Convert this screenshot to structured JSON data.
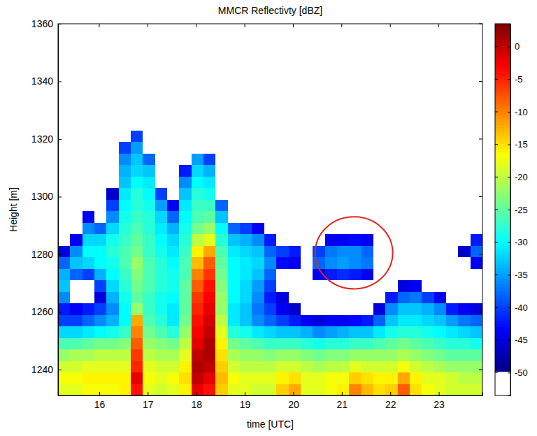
{
  "chart_data": {
    "type": "heatmap",
    "title": "MMCR Reflectivty [dBZ]",
    "x_label": "time [UTC]",
    "y_label": "Height [m]",
    "xlim": [
      15.15,
      23.9
    ],
    "xticks": [
      16,
      17,
      18,
      19,
      20,
      21,
      22,
      23
    ],
    "ylim": [
      1231,
      1360
    ],
    "yticks": [
      1240,
      1260,
      1280,
      1300,
      1320,
      1340,
      1360
    ],
    "x": [
      15.275,
      15.525,
      15.775,
      16.025,
      16.275,
      16.525,
      16.775,
      17.025,
      17.275,
      17.525,
      17.775,
      18.025,
      18.275,
      18.525,
      18.775,
      19.025,
      19.275,
      19.525,
      19.775,
      20.025,
      20.275,
      20.525,
      20.775,
      21.025,
      21.275,
      21.525,
      21.775,
      22.025,
      22.275,
      22.525,
      22.775,
      23.025,
      23.275,
      23.525,
      23.775
    ],
    "y": [
      1233,
      1237,
      1241,
      1245,
      1249,
      1253,
      1257,
      1261,
      1265,
      1269,
      1273,
      1277,
      1281,
      1285,
      1289,
      1293,
      1297,
      1301,
      1305,
      1309,
      1313,
      1317,
      1321,
      1325
    ],
    "values": [
      [
        -18,
        -17,
        -19,
        -22,
        -26,
        -32,
        -40,
        -42,
        -36,
        -33,
        -34,
        -38,
        -45,
        null,
        null,
        null,
        null,
        null,
        null,
        null,
        null,
        null,
        null,
        null
      ],
      [
        -18,
        -17,
        -19,
        -21,
        -26,
        -32,
        -40,
        -44,
        null,
        null,
        -38,
        -33,
        -36,
        -44,
        null,
        null,
        null,
        null,
        null,
        null,
        null,
        null,
        null,
        null
      ],
      [
        -17,
        -16,
        -18,
        -21,
        -25,
        -31,
        -38,
        -42,
        null,
        null,
        -40,
        -32,
        -30,
        -32,
        -36,
        -44,
        null,
        null,
        null,
        null,
        null,
        null,
        null,
        null
      ],
      [
        -17,
        -16,
        -18,
        -20,
        -24,
        -30,
        -36,
        -40,
        -45,
        -40,
        -34,
        -30,
        -30,
        -32,
        -38,
        null,
        null,
        null,
        null,
        null,
        null,
        null,
        null,
        null
      ],
      [
        -17,
        -16,
        -18,
        -20,
        -24,
        -29,
        -34,
        -36,
        -34,
        -32,
        -30,
        -29,
        -28,
        -29,
        -32,
        -36,
        -40,
        -46,
        null,
        null,
        null,
        null,
        null,
        null
      ],
      [
        -16,
        -16,
        -18,
        -20,
        -23,
        -27,
        -30,
        -30,
        -29,
        -28,
        -27,
        -26,
        -26,
        -27,
        -28,
        -29,
        -30,
        -31,
        -33,
        -34,
        -36,
        -40,
        null,
        null
      ],
      [
        -4,
        -2,
        -5,
        -6,
        -8,
        -10,
        -12,
        -22,
        -25,
        -24,
        -23,
        -22,
        -24,
        -25,
        -26,
        -27,
        -28,
        -28,
        -30,
        -32,
        -33,
        -35,
        -40,
        null
      ],
      [
        -18,
        -17,
        -18,
        -20,
        -22,
        -24,
        -26,
        -27,
        -27,
        -26,
        -26,
        -26,
        -27,
        -27,
        -28,
        -28,
        -29,
        -30,
        -31,
        -33,
        -38,
        null,
        null,
        null
      ],
      [
        -19,
        -18,
        -19,
        -21,
        -23,
        -26,
        -28,
        -29,
        -29,
        -28,
        -28,
        -28,
        -29,
        -30,
        -31,
        -32,
        -35,
        -40,
        null,
        null,
        null,
        null,
        null,
        null
      ],
      [
        -18,
        -17,
        -19,
        -21,
        -24,
        -28,
        -31,
        -31,
        -30,
        -29,
        -29,
        -30,
        -31,
        -32,
        -34,
        -38,
        -44,
        null,
        null,
        null,
        null,
        null,
        null,
        null
      ],
      [
        -16,
        -15,
        -16,
        -18,
        -20,
        -22,
        -24,
        -25,
        -25,
        -25,
        -26,
        -26,
        -27,
        -28,
        -29,
        -30,
        -31,
        -33,
        -36,
        -42,
        null,
        null,
        null,
        null
      ],
      [
        -2,
        0,
        1,
        0,
        -2,
        -3,
        -4,
        -5,
        -6,
        -8,
        -10,
        -13,
        -16,
        -20,
        -24,
        -26,
        -27,
        -28,
        -30,
        -32,
        -35,
        null,
        null,
        null
      ],
      [
        -4,
        -2,
        0,
        1,
        1,
        0,
        -1,
        -2,
        -3,
        -4,
        -6,
        -8,
        -12,
        -18,
        -22,
        -25,
        -27,
        -29,
        -31,
        -34,
        -40,
        null,
        null,
        null
      ],
      [
        -14,
        -13,
        -14,
        -15,
        -16,
        -18,
        -20,
        -22,
        -22,
        -23,
        -24,
        -25,
        -26,
        -28,
        -30,
        -33,
        -38,
        null,
        null,
        null,
        null,
        null,
        null,
        null
      ],
      [
        -18,
        -17,
        -19,
        -21,
        -24,
        -28,
        -31,
        -31,
        -30,
        -30,
        -30,
        -30,
        -31,
        -33,
        -38,
        null,
        null,
        null,
        null,
        null,
        null,
        null,
        null,
        null
      ],
      [
        -18,
        -18,
        -20,
        -22,
        -25,
        -29,
        -33,
        -33,
        -32,
        -32,
        -31,
        -31,
        -32,
        -34,
        -40,
        null,
        null,
        null,
        null,
        null,
        null,
        null,
        null,
        null
      ],
      [
        -19,
        -18,
        -20,
        -22,
        -26,
        -31,
        -36,
        -37,
        -36,
        -35,
        -33,
        -32,
        -33,
        -36,
        -44,
        null,
        null,
        null,
        null,
        null,
        null,
        null,
        null,
        null
      ],
      [
        -19,
        -18,
        -20,
        -23,
        -27,
        -32,
        -38,
        -40,
        -42,
        -40,
        -38,
        -36,
        -38,
        -42,
        null,
        null,
        null,
        null,
        null,
        null,
        null,
        null,
        null,
        null
      ],
      [
        -14,
        -16,
        -19,
        -22,
        -27,
        -33,
        -40,
        -44,
        -45,
        null,
        null,
        -43,
        -40,
        null,
        null,
        null,
        null,
        null,
        null,
        null,
        null,
        null,
        null,
        null
      ],
      [
        -12,
        -15,
        -19,
        -22,
        -27,
        -33,
        -42,
        -46,
        null,
        null,
        null,
        -44,
        -42,
        null,
        null,
        null,
        null,
        null,
        null,
        null,
        null,
        null,
        null,
        null
      ],
      [
        -18,
        -18,
        -20,
        -23,
        -28,
        -34,
        -44,
        null,
        null,
        null,
        null,
        null,
        null,
        null,
        null,
        null,
        null,
        null,
        null,
        null,
        null,
        null,
        null,
        null
      ],
      [
        -18,
        -18,
        -21,
        -24,
        -29,
        -36,
        -45,
        null,
        null,
        null,
        -44,
        -38,
        -40,
        null,
        null,
        null,
        null,
        null,
        null,
        null,
        null,
        null,
        null,
        null
      ],
      [
        -17,
        -17,
        -20,
        -23,
        -28,
        -35,
        -44,
        null,
        null,
        null,
        -42,
        -36,
        -37,
        -44,
        null,
        null,
        null,
        null,
        null,
        null,
        null,
        null,
        null,
        null
      ],
      [
        -16,
        -17,
        -20,
        -23,
        -28,
        -34,
        -44,
        null,
        null,
        null,
        -41,
        -35,
        -36,
        -44,
        null,
        null,
        null,
        null,
        null,
        null,
        null,
        null,
        null,
        null
      ],
      [
        -10,
        -14,
        -18,
        -22,
        -27,
        -33,
        -43,
        null,
        null,
        null,
        -42,
        -36,
        -36,
        -43,
        null,
        null,
        null,
        null,
        null,
        null,
        null,
        null,
        null,
        null
      ],
      [
        -13,
        -15,
        -19,
        -22,
        -27,
        -33,
        -42,
        null,
        null,
        null,
        -44,
        -37,
        -38,
        -44,
        null,
        null,
        null,
        null,
        null,
        null,
        null,
        null,
        null,
        null
      ],
      [
        -15,
        -16,
        -19,
        -22,
        -26,
        -31,
        -38,
        -45,
        null,
        null,
        null,
        null,
        null,
        null,
        null,
        null,
        null,
        null,
        null,
        null,
        null,
        null,
        null,
        null
      ],
      [
        -14,
        -16,
        -19,
        -22,
        -25,
        -29,
        -33,
        -36,
        -42,
        null,
        null,
        null,
        null,
        null,
        null,
        null,
        null,
        null,
        null,
        null,
        null,
        null,
        null,
        null
      ],
      [
        -8,
        -12,
        -17,
        -21,
        -24,
        -28,
        -31,
        -33,
        -38,
        -45,
        null,
        null,
        null,
        null,
        null,
        null,
        null,
        null,
        null,
        null,
        null,
        null,
        null,
        null
      ],
      [
        -15,
        -16,
        -19,
        -22,
        -25,
        -28,
        -31,
        -33,
        -37,
        -44,
        null,
        null,
        null,
        null,
        null,
        null,
        null,
        null,
        null,
        null,
        null,
        null,
        null,
        null
      ],
      [
        -17,
        -18,
        -20,
        -23,
        -26,
        -29,
        -32,
        -34,
        -40,
        null,
        null,
        null,
        null,
        null,
        null,
        null,
        null,
        null,
        null,
        null,
        null,
        null,
        null,
        null
      ],
      [
        -18,
        -18,
        -21,
        -24,
        -27,
        -30,
        -33,
        -36,
        -44,
        null,
        null,
        null,
        null,
        null,
        null,
        null,
        null,
        null,
        null,
        null,
        null,
        null,
        null,
        null
      ],
      [
        -19,
        -19,
        -22,
        -25,
        -28,
        -31,
        -35,
        -42,
        null,
        null,
        null,
        null,
        null,
        null,
        null,
        null,
        null,
        null,
        null,
        null,
        null,
        null,
        null,
        null
      ],
      [
        -19,
        -20,
        -22,
        -25,
        -28,
        -32,
        -37,
        -44,
        null,
        null,
        null,
        null,
        -46,
        null,
        null,
        null,
        null,
        null,
        null,
        null,
        null,
        null,
        null,
        null
      ],
      [
        -19,
        -20,
        -22,
        -25,
        -29,
        -33,
        -38,
        -45,
        null,
        null,
        null,
        -44,
        -38,
        -42,
        null,
        null,
        null,
        null,
        null,
        null,
        null,
        null,
        null,
        null
      ]
    ],
    "colorbar": {
      "lim": [
        -53.5,
        3.5
      ],
      "ticks": [
        -50,
        -45,
        -40,
        -35,
        -30,
        -25,
        -20,
        -15,
        -10,
        -5,
        0
      ]
    },
    "highlight": {
      "x": [
        20.45,
        22.05
      ],
      "y": [
        1268,
        1293
      ],
      "color": "#e0261f"
    }
  }
}
